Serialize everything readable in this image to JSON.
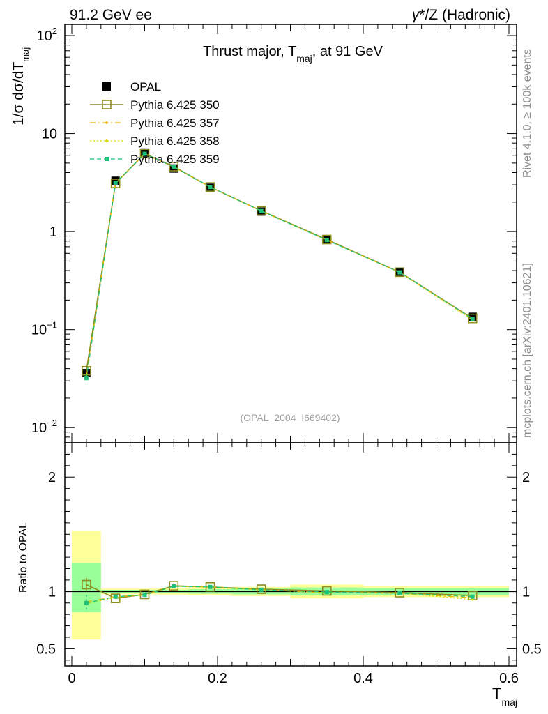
{
  "header": {
    "left": "91.2 GeV ee",
    "right_gamma": "γ",
    "right_rest": "*/Z (Hadronic)"
  },
  "side_labels": {
    "rivet": "Rivet 4.1.0, ≥ 100k events",
    "mcplots": "mcplots.cern.ch [arXiv:2401.10621]"
  },
  "watermark": "(OPAL_2004_I669402)",
  "colors": {
    "data": "#000000",
    "p350": "#8c8c1e",
    "p357": "#e6b400",
    "p358": "#d8d800",
    "p359": "#1ec27a",
    "band_outer": "#ffff99",
    "band_inner": "#99ff99"
  },
  "chart_data": [
    {
      "type": "line",
      "title_main": "Thrust major, T",
      "title_sub": "maj",
      "title_tail": ", at 91 GeV",
      "ylabel_prefix": "1/σ  dσ/dT",
      "ylabel_sub": "maj",
      "yscale": "log",
      "ylim": [
        0.007,
        130
      ],
      "xlim": [
        -0.02,
        0.6
      ],
      "yticks": [
        {
          "value": 0.01,
          "base": "10",
          "exp": "−2"
        },
        {
          "value": 0.1,
          "base": "10",
          "exp": "−1"
        },
        {
          "value": 1,
          "base": "1",
          "exp": ""
        },
        {
          "value": 10,
          "base": "10",
          "exp": ""
        },
        {
          "value": 100,
          "base": "10",
          "exp": "2"
        }
      ],
      "legend_position": "top-left",
      "legend": [
        "OPAL",
        "Pythia 6.425 350",
        "Pythia 6.425 357",
        "Pythia 6.425 358",
        "Pythia 6.425 359"
      ],
      "x": [
        0.02,
        0.06,
        0.1,
        0.14,
        0.19,
        0.26,
        0.35,
        0.45,
        0.55
      ],
      "bin_edges": [
        0.0,
        0.04,
        0.08,
        0.12,
        0.16,
        0.22,
        0.3,
        0.4,
        0.5,
        0.6
      ],
      "data": {
        "name": "OPAL",
        "values": [
          0.036,
          3.3,
          6.4,
          4.4,
          2.8,
          1.6,
          0.83,
          0.39,
          0.135
        ]
      },
      "series": [
        {
          "name": "Pythia 6.425 350",
          "values": [
            0.038,
            3.1,
            6.25,
            4.6,
            2.85,
            1.63,
            0.83,
            0.385,
            0.13
          ]
        },
        {
          "name": "Pythia 6.425 357",
          "values": [
            0.033,
            3.15,
            6.2,
            4.55,
            2.84,
            1.62,
            0.82,
            0.383,
            0.128
          ]
        },
        {
          "name": "Pythia 6.425 358",
          "values": [
            0.032,
            3.13,
            6.2,
            4.56,
            2.84,
            1.62,
            0.82,
            0.383,
            0.125
          ]
        },
        {
          "name": "Pythia 6.425 359",
          "values": [
            0.032,
            3.14,
            6.22,
            4.57,
            2.85,
            1.62,
            0.82,
            0.384,
            0.129
          ]
        }
      ]
    },
    {
      "type": "line",
      "ylabel": "Ratio to OPAL",
      "xlabel_main": "T",
      "xlabel_sub": "maj",
      "ylim": [
        0.35,
        2.3
      ],
      "xlim": [
        -0.02,
        0.6
      ],
      "yticks": [
        0.5,
        1,
        2
      ],
      "yticklabels": [
        "0.5",
        "1",
        "2"
      ],
      "xticks": [
        0,
        0.2,
        0.4,
        0.6
      ],
      "xticklabels": [
        "0",
        "0.2",
        "0.4",
        "0.6"
      ],
      "x": [
        0.02,
        0.06,
        0.1,
        0.14,
        0.19,
        0.26,
        0.35,
        0.45,
        0.55
      ],
      "bin_edges": [
        0.0,
        0.04,
        0.08,
        0.12,
        0.16,
        0.22,
        0.3,
        0.4,
        0.5,
        0.6
      ],
      "band_inner": [
        [
          0.82,
          1.25
        ],
        [
          0.985,
          1.015
        ],
        [
          0.985,
          1.015
        ],
        [
          0.985,
          1.015
        ],
        [
          0.98,
          1.02
        ],
        [
          0.975,
          1.025
        ],
        [
          0.965,
          1.035
        ],
        [
          0.97,
          1.03
        ],
        [
          0.97,
          1.03
        ]
      ],
      "band_outer": [
        [
          0.58,
          1.53
        ],
        [
          0.975,
          1.025
        ],
        [
          0.975,
          1.025
        ],
        [
          0.97,
          1.03
        ],
        [
          0.965,
          1.035
        ],
        [
          0.96,
          1.04
        ],
        [
          0.94,
          1.06
        ],
        [
          0.95,
          1.05
        ],
        [
          0.95,
          1.05
        ]
      ],
      "series": [
        {
          "name": "Pythia 6.425 350",
          "values": [
            1.06,
            0.94,
            0.975,
            1.05,
            1.04,
            1.02,
            1.005,
            0.99,
            0.965
          ]
        },
        {
          "name": "Pythia 6.425 357",
          "values": [
            0.91,
            0.955,
            0.97,
            1.045,
            1.04,
            1.015,
            0.99,
            0.985,
            0.945
          ]
        },
        {
          "name": "Pythia 6.425 358",
          "values": [
            0.89,
            0.95,
            0.97,
            1.045,
            1.035,
            1.015,
            0.99,
            0.985,
            0.93
          ]
        },
        {
          "name": "Pythia 6.425 359",
          "values": [
            0.9,
            0.955,
            0.97,
            1.045,
            1.04,
            1.015,
            0.995,
            0.985,
            0.955
          ]
        }
      ]
    }
  ]
}
